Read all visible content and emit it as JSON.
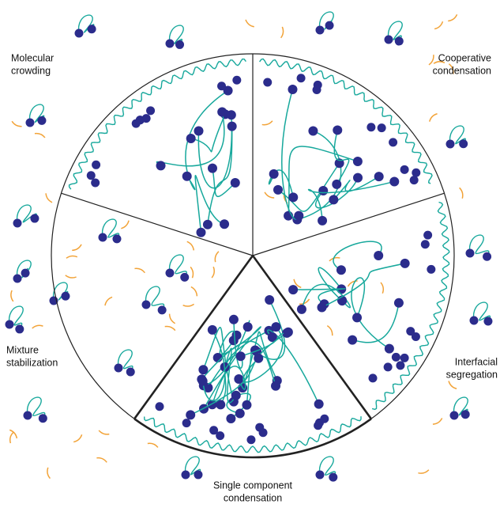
{
  "labels": {
    "molecular_crowding": [
      "Molecular",
      "crowding"
    ],
    "cooperative_condensation": [
      "Cooperative",
      "condensation"
    ],
    "interfacial_segregation": [
      "Interfacial",
      "segregation"
    ],
    "single_component_condensation": [
      "Single component",
      "condensation"
    ],
    "mixture_stabilization": [
      "Mixture",
      "stabilization"
    ]
  }
}
